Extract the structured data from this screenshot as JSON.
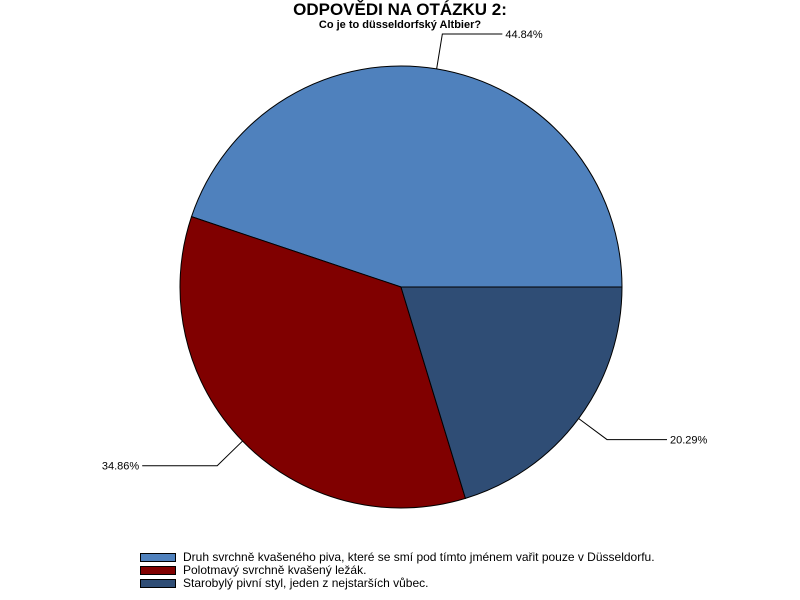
{
  "chart_data": {
    "type": "pie",
    "title": "ODPOVĚDI NA OTÁZKU 2:",
    "subtitle": "Co je to düsseldorfský Altbier?",
    "categories": [
      "Druh svrchně kvašeného piva, které se smí pod tímto jménem vařit pouze v Düsseldorfu.",
      "Polotmavý svrchně kvašený ležák.",
      "Starobylý pivní styl, jeden z nejstarších vůbec."
    ],
    "values": [
      44.84,
      34.86,
      20.29
    ],
    "labels": [
      "44.84%",
      "34.86%",
      "20.29%"
    ],
    "colors": [
      "#4f81bd",
      "#800000",
      "#2f4d75"
    ],
    "start_angle_deg": 0,
    "direction": "counterclockwise",
    "legend_position": "bottom"
  }
}
